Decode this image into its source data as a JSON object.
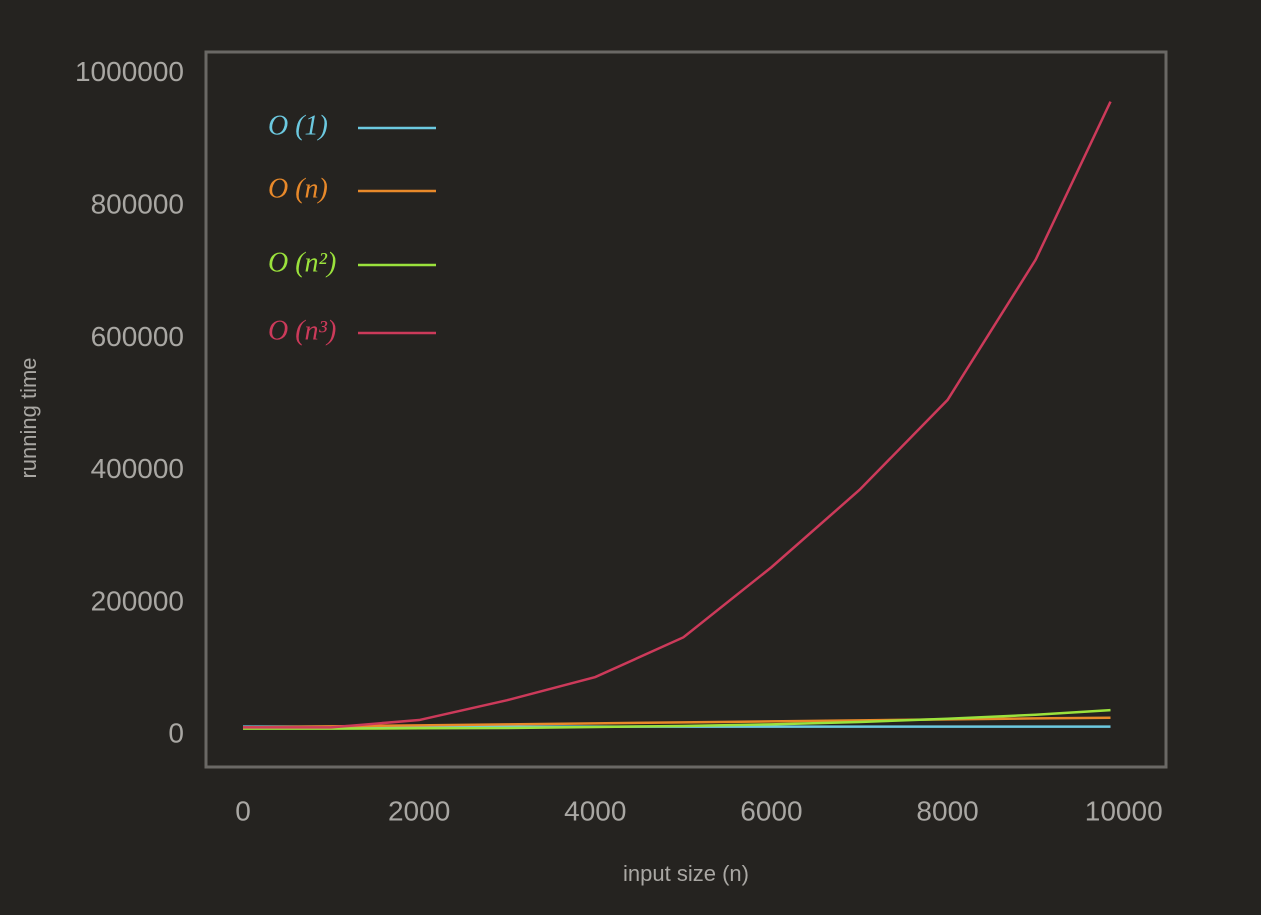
{
  "chart_data": {
    "type": "line",
    "x_label": "input size (n)",
    "y_label": "running time",
    "x": [
      0,
      1000,
      2000,
      3000,
      4000,
      5000,
      6000,
      7000,
      8000,
      9000,
      9850
    ],
    "series": [
      {
        "name": "O (1)",
        "color": "#6cc9e0",
        "values": [
          13000,
          13000,
          13000,
          13000,
          13000,
          13000,
          13000,
          13000,
          13000,
          13000,
          13000
        ]
      },
      {
        "name": "O (n)",
        "color": "#e8892a",
        "values": [
          12000,
          13500,
          15000,
          16500,
          18000,
          19500,
          21000,
          22500,
          24000,
          25500,
          26500
        ]
      },
      {
        "name": "O (n²)",
        "color": "#9be23c",
        "values": [
          10000,
          10000,
          10500,
          11000,
          12500,
          14000,
          16500,
          20000,
          25000,
          31000,
          38000
        ]
      },
      {
        "name": "O (n³)",
        "color": "#cc3a5a",
        "values": [
          12000,
          12000,
          23000,
          53000,
          88000,
          148000,
          254000,
          371000,
          507000,
          719000,
          958000
        ]
      }
    ],
    "xlim": [
      -420,
      10480
    ],
    "ylim": [
      -48000,
      1033000
    ],
    "xticks": [
      0,
      2000,
      4000,
      6000,
      8000,
      10000
    ],
    "yticks": [
      0,
      200000,
      400000,
      600000,
      800000,
      1000000
    ],
    "legend": "upper-left"
  }
}
